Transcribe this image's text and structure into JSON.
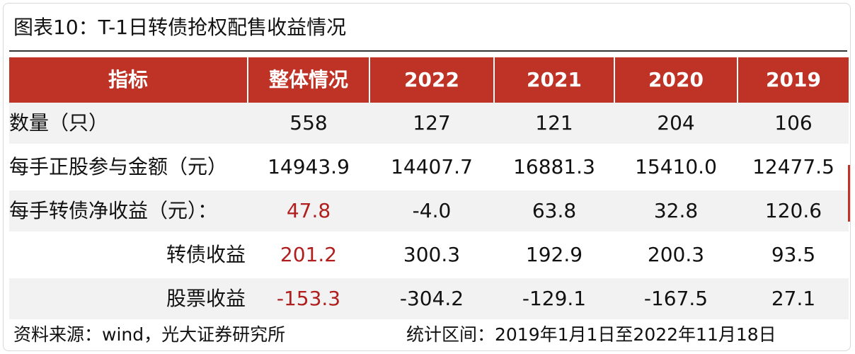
{
  "title": "图表10：T-1日转债抢权配售收益情况",
  "header": [
    "指标",
    "整体情况",
    "2022",
    "2021",
    "2020",
    "2019"
  ],
  "rows": [
    {
      "label": "数量（只）",
      "values": [
        "558",
        "127",
        "121",
        "204",
        "106"
      ]
    },
    {
      "label": "每手正股参与金额（元）",
      "values": [
        "14943.9",
        "14407.7",
        "16881.3",
        "15410.0",
        "12477.5"
      ]
    },
    {
      "label": "每手转债净收益（元）：",
      "values": [
        "47.8",
        "-4.0",
        "63.8",
        "32.8",
        "120.6"
      ]
    },
    {
      "label": "转债收益",
      "values": [
        "201.2",
        "300.3",
        "192.9",
        "200.3",
        "93.5"
      ]
    },
    {
      "label": "股票收益",
      "values": [
        "-153.3",
        "-304.2",
        "-129.1",
        "-167.5",
        "27.1"
      ]
    }
  ],
  "footer": {
    "source": "资料来源：wind，光大证券研究所",
    "period": "统计区间：2019年1月1日至2022年11月18日"
  },
  "colors": {
    "header_bg": "#bf3326",
    "highlight_text": "#b01e1e",
    "row_shade": "#f2f2f2"
  }
}
